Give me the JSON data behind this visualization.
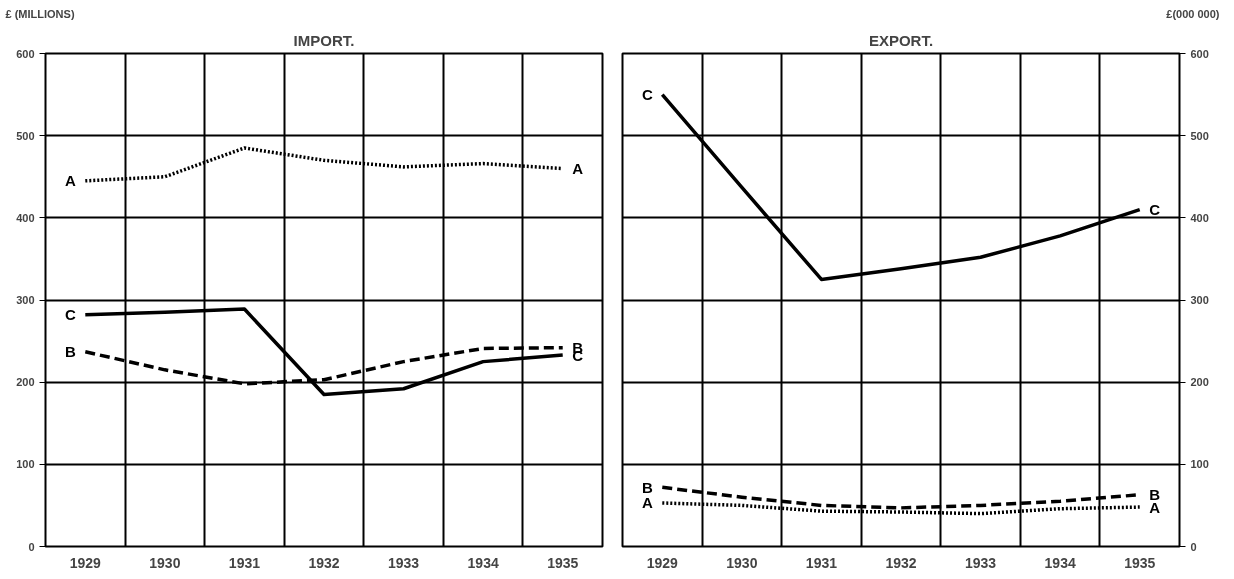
{
  "chart_data": [
    {
      "type": "line",
      "title": "IMPORT.",
      "ylabel": "£ (MILLIONS)",
      "categories": [
        "1929",
        "1930",
        "1931",
        "1932",
        "1933",
        "1934",
        "1935"
      ],
      "ylim": [
        0,
        600
      ],
      "yticks": [
        0,
        100,
        200,
        300,
        400,
        500,
        600
      ],
      "grid": true,
      "series": [
        {
          "name": "A",
          "color": "#000000",
          "line_style": "dotted",
          "values": [
            445,
            450,
            485,
            470,
            462,
            466,
            460
          ]
        },
        {
          "name": "B",
          "color": "#000000",
          "line_style": "dashed",
          "values": [
            237,
            215,
            198,
            203,
            225,
            241,
            242
          ]
        },
        {
          "name": "C",
          "color": "#000000",
          "line_style": "solid",
          "values": [
            282,
            285,
            289,
            185,
            192,
            225,
            233
          ]
        }
      ]
    },
    {
      "type": "line",
      "title": "EXPORT.",
      "y2label": "£(000 000)",
      "categories": [
        "1929",
        "1930",
        "1931",
        "1932",
        "1933",
        "1934",
        "1935"
      ],
      "y2lim": [
        0,
        600
      ],
      "y2ticks": [
        0,
        100,
        200,
        300,
        400,
        500,
        600
      ],
      "grid": true,
      "series": [
        {
          "name": "A",
          "color": "#000000",
          "line_style": "dotted",
          "axis": "y2",
          "values": [
            53,
            50,
            43,
            42,
            40,
            46,
            48
          ]
        },
        {
          "name": "B",
          "color": "#000000",
          "line_style": "dashed",
          "axis": "y2",
          "values": [
            72,
            60,
            50,
            47,
            50,
            55,
            63
          ]
        },
        {
          "name": "C",
          "color": "#000000",
          "line_style": "solid",
          "axis": "y2",
          "values": [
            550,
            437,
            325,
            338,
            352,
            378,
            410
          ]
        }
      ]
    }
  ]
}
